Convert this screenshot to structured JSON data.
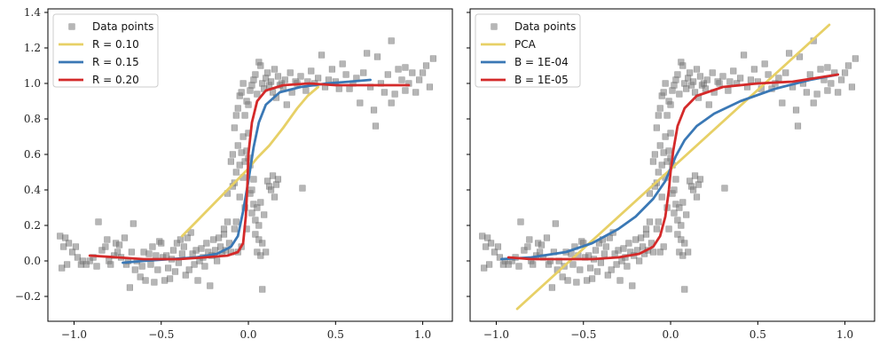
{
  "chart_data": [
    {
      "type": "scatter",
      "panel": "left",
      "xlim": [
        -1.15,
        1.17
      ],
      "ylim": [
        -0.34,
        1.42
      ],
      "xticks": [
        -1.0,
        -0.5,
        0.0,
        0.5,
        1.0
      ],
      "xtick_labels": [
        "−1.0",
        "−0.5",
        "0.0",
        "0.5",
        "1.0"
      ],
      "yticks": [
        -0.2,
        0.0,
        0.2,
        0.4,
        0.6,
        0.8,
        1.0,
        1.2,
        1.4
      ],
      "ytick_labels": [
        "−0.2",
        "0.0",
        "0.2",
        "0.4",
        "0.6",
        "0.8",
        "1.0",
        "1.2",
        "1.4"
      ],
      "legend_position": "top-left",
      "grid": false,
      "series": [
        {
          "name": "Data points",
          "kind": "scatter",
          "color": "#999999"
        },
        {
          "name": "R = 0.10",
          "kind": "line",
          "color": "#e7d066",
          "points": [
            [
              -0.38,
              0.14
            ],
            [
              -0.3,
              0.22
            ],
            [
              -0.2,
              0.32
            ],
            [
              -0.12,
              0.4
            ],
            [
              -0.05,
              0.47
            ],
            [
              0.0,
              0.52
            ],
            [
              0.05,
              0.58
            ],
            [
              0.12,
              0.65
            ],
            [
              0.2,
              0.75
            ],
            [
              0.28,
              0.86
            ],
            [
              0.34,
              0.93
            ],
            [
              0.4,
              0.98
            ]
          ]
        },
        {
          "name": "R = 0.15",
          "kind": "line",
          "color": "#3a78b5",
          "points": [
            [
              -0.72,
              -0.01
            ],
            [
              -0.6,
              0.0
            ],
            [
              -0.45,
              0.01
            ],
            [
              -0.3,
              0.02
            ],
            [
              -0.18,
              0.04
            ],
            [
              -0.1,
              0.08
            ],
            [
              -0.06,
              0.14
            ],
            [
              -0.03,
              0.28
            ],
            [
              0.0,
              0.45
            ],
            [
              0.03,
              0.64
            ],
            [
              0.06,
              0.78
            ],
            [
              0.1,
              0.88
            ],
            [
              0.18,
              0.95
            ],
            [
              0.3,
              0.98
            ],
            [
              0.45,
              1.0
            ],
            [
              0.58,
              1.01
            ],
            [
              0.7,
              1.02
            ]
          ]
        },
        {
          "name": "R = 0.20",
          "kind": "line",
          "color": "#d42a2a",
          "points": [
            [
              -0.91,
              0.03
            ],
            [
              -0.75,
              0.02
            ],
            [
              -0.6,
              0.01
            ],
            [
              -0.4,
              0.01
            ],
            [
              -0.25,
              0.02
            ],
            [
              -0.12,
              0.03
            ],
            [
              -0.06,
              0.05
            ],
            [
              -0.03,
              0.1
            ],
            [
              -0.015,
              0.25
            ],
            [
              -0.005,
              0.45
            ],
            [
              0.0,
              0.6
            ],
            [
              0.02,
              0.78
            ],
            [
              0.05,
              0.9
            ],
            [
              0.1,
              0.96
            ],
            [
              0.2,
              0.99
            ],
            [
              0.35,
              1.0
            ],
            [
              0.5,
              0.99
            ],
            [
              0.7,
              0.99
            ],
            [
              0.92,
              0.99
            ]
          ]
        }
      ]
    },
    {
      "type": "scatter",
      "panel": "right",
      "xlim": [
        -1.15,
        1.17
      ],
      "ylim": [
        -0.34,
        1.42
      ],
      "xticks": [
        -1.0,
        -0.5,
        0.0,
        0.5,
        1.0
      ],
      "xtick_labels": [
        "−1.0",
        "−0.5",
        "0.0",
        "0.5",
        "1.0"
      ],
      "legend_position": "top-left",
      "grid": false,
      "series": [
        {
          "name": "Data points",
          "kind": "scatter",
          "color": "#999999"
        },
        {
          "name": "PCA",
          "kind": "line",
          "color": "#e7d066",
          "points": [
            [
              -0.88,
              -0.27
            ],
            [
              0.91,
              1.33
            ]
          ]
        },
        {
          "name": "B = 1E-04",
          "kind": "line",
          "color": "#3a78b5",
          "points": [
            [
              -0.97,
              0.01
            ],
            [
              -0.8,
              0.02
            ],
            [
              -0.6,
              0.05
            ],
            [
              -0.45,
              0.1
            ],
            [
              -0.3,
              0.18
            ],
            [
              -0.2,
              0.25
            ],
            [
              -0.1,
              0.35
            ],
            [
              -0.03,
              0.45
            ],
            [
              0.0,
              0.52
            ],
            [
              0.03,
              0.59
            ],
            [
              0.08,
              0.68
            ],
            [
              0.15,
              0.76
            ],
            [
              0.25,
              0.83
            ],
            [
              0.4,
              0.9
            ],
            [
              0.6,
              0.97
            ],
            [
              0.8,
              1.02
            ],
            [
              0.96,
              1.05
            ]
          ]
        },
        {
          "name": "B = 1E-05",
          "kind": "line",
          "color": "#d42a2a",
          "points": [
            [
              -0.93,
              0.02
            ],
            [
              -0.8,
              0.01
            ],
            [
              -0.6,
              0.01
            ],
            [
              -0.45,
              0.01
            ],
            [
              -0.3,
              0.02
            ],
            [
              -0.18,
              0.04
            ],
            [
              -0.1,
              0.08
            ],
            [
              -0.06,
              0.14
            ],
            [
              -0.03,
              0.25
            ],
            [
              -0.01,
              0.4
            ],
            [
              0.0,
              0.5
            ],
            [
              0.015,
              0.62
            ],
            [
              0.04,
              0.76
            ],
            [
              0.08,
              0.86
            ],
            [
              0.15,
              0.93
            ],
            [
              0.3,
              0.98
            ],
            [
              0.5,
              1.0
            ],
            [
              0.7,
              1.01
            ],
            [
              0.96,
              1.05
            ]
          ]
        }
      ]
    }
  ],
  "data_points": [
    [
      -1.08,
      0.14
    ],
    [
      -1.05,
      0.13
    ],
    [
      -1.03,
      0.1
    ],
    [
      -1.06,
      0.08
    ],
    [
      -1.07,
      -0.04
    ],
    [
      -1.04,
      -0.02
    ],
    [
      -1.01,
      0.05
    ],
    [
      -0.99,
      0.08
    ],
    [
      -0.98,
      0.02
    ],
    [
      -0.96,
      -0.02
    ],
    [
      -0.95,
      0.0
    ],
    [
      -0.93,
      -0.02
    ],
    [
      -0.91,
      0.0
    ],
    [
      -0.89,
      0.02
    ],
    [
      -0.87,
      -0.03
    ],
    [
      -0.86,
      0.22
    ],
    [
      -0.84,
      0.06
    ],
    [
      -0.82,
      0.08
    ],
    [
      -0.81,
      0.12
    ],
    [
      -0.8,
      0.0
    ],
    [
      -0.79,
      -0.02
    ],
    [
      -0.77,
      0.03
    ],
    [
      -0.76,
      0.1
    ],
    [
      -0.75,
      0.05
    ],
    [
      -0.74,
      0.09
    ],
    [
      -0.73,
      0.02
    ],
    [
      -0.71,
      0.13
    ],
    [
      -0.7,
      -0.02
    ],
    [
      -0.69,
      0.0
    ],
    [
      -0.68,
      -0.15
    ],
    [
      -0.67,
      0.05
    ],
    [
      -0.66,
      0.21
    ],
    [
      -0.65,
      -0.05
    ],
    [
      -0.64,
      0.0
    ],
    [
      -0.62,
      -0.09
    ],
    [
      -0.61,
      -0.03
    ],
    [
      -0.6,
      0.05
    ],
    [
      -0.59,
      -0.11
    ],
    [
      -0.57,
      0.04
    ],
    [
      -0.56,
      -0.02
    ],
    [
      -0.55,
      0.08
    ],
    [
      -0.54,
      -0.12
    ],
    [
      -0.53,
      0.03
    ],
    [
      -0.52,
      -0.05
    ],
    [
      -0.51,
      0.11
    ],
    [
      -0.5,
      0.1
    ],
    [
      -0.49,
      0.02
    ],
    [
      -0.48,
      -0.11
    ],
    [
      -0.47,
      0.03
    ],
    [
      -0.46,
      -0.04
    ],
    [
      -0.45,
      -0.1
    ],
    [
      -0.44,
      0.01
    ],
    [
      -0.43,
      0.06
    ],
    [
      -0.42,
      -0.06
    ],
    [
      -0.41,
      0.1
    ],
    [
      -0.4,
      -0.01
    ],
    [
      -0.39,
      0.12
    ],
    [
      -0.38,
      0.04
    ],
    [
      -0.37,
      0.08
    ],
    [
      -0.36,
      -0.08
    ],
    [
      -0.35,
      0.13
    ],
    [
      -0.34,
      -0.05
    ],
    [
      -0.33,
      0.16
    ],
    [
      -0.32,
      0.04
    ],
    [
      -0.31,
      -0.02
    ],
    [
      -0.3,
      0.06
    ],
    [
      -0.29,
      -0.11
    ],
    [
      -0.28,
      0.0
    ],
    [
      -0.27,
      0.07
    ],
    [
      -0.26,
      0.02
    ],
    [
      -0.25,
      -0.03
    ],
    [
      -0.24,
      0.1
    ],
    [
      -0.23,
      0.05
    ],
    [
      -0.22,
      -0.14
    ],
    [
      -0.21,
      0.03
    ],
    [
      -0.2,
      0.12
    ],
    [
      -0.19,
      0.06
    ],
    [
      -0.18,
      0.0
    ],
    [
      -0.17,
      0.13
    ],
    [
      -0.16,
      0.08
    ],
    [
      -0.15,
      0.04
    ],
    [
      -0.14,
      0.15
    ],
    [
      -0.13,
      0.06
    ],
    [
      -0.12,
      0.38
    ],
    [
      -0.11,
      0.1
    ],
    [
      -0.1,
      0.05
    ],
    [
      -0.09,
      0.42
    ],
    [
      -0.08,
      0.44
    ],
    [
      -0.08,
      0.18
    ],
    [
      -0.07,
      0.22
    ],
    [
      -0.07,
      0.5
    ],
    [
      -0.06,
      0.05
    ],
    [
      -0.06,
      0.65
    ],
    [
      -0.05,
      0.54
    ],
    [
      -0.05,
      0.36
    ],
    [
      -0.04,
      0.61
    ],
    [
      -0.04,
      0.08
    ],
    [
      -0.03,
      0.7
    ],
    [
      -0.03,
      0.47
    ],
    [
      -0.02,
      0.56
    ],
    [
      -0.02,
      0.3
    ],
    [
      -0.01,
      0.62
    ],
    [
      -0.01,
      0.18
    ],
    [
      0.0,
      0.58
    ],
    [
      0.0,
      0.72
    ],
    [
      0.01,
      0.38
    ],
    [
      0.01,
      0.54
    ],
    [
      0.02,
      0.4
    ],
    [
      0.02,
      0.27
    ],
    [
      0.03,
      0.32
    ],
    [
      0.03,
      0.46
    ],
    [
      0.04,
      0.23
    ],
    [
      0.04,
      0.15
    ],
    [
      0.05,
      0.3
    ],
    [
      0.05,
      0.05
    ],
    [
      0.06,
      0.12
    ],
    [
      0.06,
      0.2
    ],
    [
      0.07,
      0.03
    ],
    [
      0.07,
      0.33
    ],
    [
      0.08,
      0.1
    ],
    [
      0.08,
      -0.16
    ],
    [
      0.09,
      0.26
    ],
    [
      0.1,
      0.05
    ],
    [
      0.11,
      0.45
    ],
    [
      0.12,
      0.42
    ],
    [
      0.13,
      0.4
    ],
    [
      0.14,
      0.48
    ],
    [
      0.15,
      0.36
    ],
    [
      0.16,
      0.43
    ],
    [
      0.17,
      0.46
    ],
    [
      -0.14,
      0.18
    ],
    [
      -0.12,
      0.22
    ],
    [
      -0.1,
      0.56
    ],
    [
      -0.09,
      0.6
    ],
    [
      -0.08,
      0.75
    ],
    [
      -0.07,
      0.82
    ],
    [
      -0.06,
      0.86
    ],
    [
      -0.05,
      0.93
    ],
    [
      -0.04,
      0.95
    ],
    [
      -0.03,
      1.0
    ],
    [
      -0.02,
      0.82
    ],
    [
      -0.01,
      0.9
    ],
    [
      0.0,
      0.88
    ],
    [
      0.01,
      0.96
    ],
    [
      0.02,
      0.99
    ],
    [
      0.03,
      1.02
    ],
    [
      0.04,
      1.05
    ],
    [
      0.05,
      0.94
    ],
    [
      0.06,
      1.12
    ],
    [
      0.07,
      1.1
    ],
    [
      0.08,
      1.0
    ],
    [
      0.09,
      0.97
    ],
    [
      0.1,
      1.03
    ],
    [
      0.11,
      1.06
    ],
    [
      0.12,
      0.99
    ],
    [
      0.13,
      1.01
    ],
    [
      0.14,
      0.95
    ],
    [
      0.15,
      1.08
    ],
    [
      0.16,
      0.92
    ],
    [
      0.17,
      1.04
    ],
    [
      0.18,
      0.99
    ],
    [
      0.19,
      1.0
    ],
    [
      0.2,
      0.97
    ],
    [
      0.21,
      1.02
    ],
    [
      0.22,
      0.88
    ],
    [
      0.24,
      1.06
    ],
    [
      0.25,
      0.95
    ],
    [
      0.27,
      1.01
    ],
    [
      0.28,
      1.0
    ],
    [
      0.3,
      1.04
    ],
    [
      0.31,
      0.41
    ],
    [
      0.33,
      0.96
    ],
    [
      0.34,
      1.01
    ],
    [
      0.36,
      1.07
    ],
    [
      0.38,
      1.0
    ],
    [
      0.4,
      1.03
    ],
    [
      0.42,
      1.16
    ],
    [
      0.44,
      0.98
    ],
    [
      0.46,
      1.02
    ],
    [
      0.48,
      1.08
    ],
    [
      0.5,
      1.01
    ],
    [
      0.52,
      0.97
    ],
    [
      0.54,
      1.11
    ],
    [
      0.56,
      1.05
    ],
    [
      0.58,
      0.97
    ],
    [
      0.6,
      1.0
    ],
    [
      0.62,
      1.03
    ],
    [
      0.64,
      0.89
    ],
    [
      0.66,
      1.06
    ],
    [
      0.68,
      1.17
    ],
    [
      0.7,
      0.98
    ],
    [
      0.72,
      0.85
    ],
    [
      0.74,
      1.15
    ],
    [
      0.76,
      1.0
    ],
    [
      0.78,
      0.95
    ],
    [
      0.8,
      1.05
    ],
    [
      0.82,
      0.89
    ],
    [
      0.84,
      0.94
    ],
    [
      0.86,
      1.08
    ],
    [
      0.88,
      1.02
    ],
    [
      0.9,
      1.09
    ],
    [
      0.92,
      1.0
    ],
    [
      0.94,
      1.06
    ],
    [
      0.96,
      0.95
    ],
    [
      0.98,
      1.02
    ],
    [
      1.0,
      1.06
    ],
    [
      1.02,
      1.1
    ],
    [
      1.04,
      0.98
    ],
    [
      1.06,
      1.14
    ],
    [
      0.82,
      1.24
    ],
    [
      0.73,
      0.76
    ],
    [
      0.9,
      0.96
    ]
  ]
}
